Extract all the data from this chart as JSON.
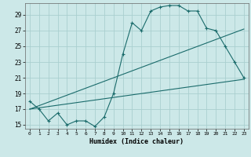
{
  "xlabel": "Humidex (Indice chaleur)",
  "background_color": "#cce8e8",
  "grid_color": "#aacfcf",
  "line_color": "#1a6b6b",
  "xlim": [
    -0.5,
    23.5
  ],
  "ylim": [
    14.5,
    30.5
  ],
  "xticks": [
    0,
    1,
    2,
    3,
    4,
    5,
    6,
    7,
    8,
    9,
    10,
    11,
    12,
    13,
    14,
    15,
    16,
    17,
    18,
    19,
    20,
    21,
    22,
    23
  ],
  "yticks": [
    15,
    17,
    19,
    21,
    23,
    25,
    27,
    29
  ],
  "series1_x": [
    0,
    1,
    2,
    3,
    4,
    5,
    6,
    7,
    8,
    9,
    10,
    11,
    12,
    13,
    14,
    15,
    16,
    17,
    18,
    19,
    20,
    21,
    22,
    23
  ],
  "series1_y": [
    18.0,
    17.0,
    15.5,
    16.5,
    15.0,
    15.5,
    15.5,
    14.8,
    16.0,
    19.0,
    24.0,
    28.0,
    27.0,
    29.5,
    30.0,
    30.2,
    30.2,
    29.5,
    29.5,
    27.3,
    27.0,
    25.0,
    23.0,
    21.0
  ],
  "series2_x": [
    0,
    23
  ],
  "series2_y": [
    17.0,
    20.8
  ],
  "series3_x": [
    0,
    23
  ],
  "series3_y": [
    17.0,
    27.2
  ]
}
